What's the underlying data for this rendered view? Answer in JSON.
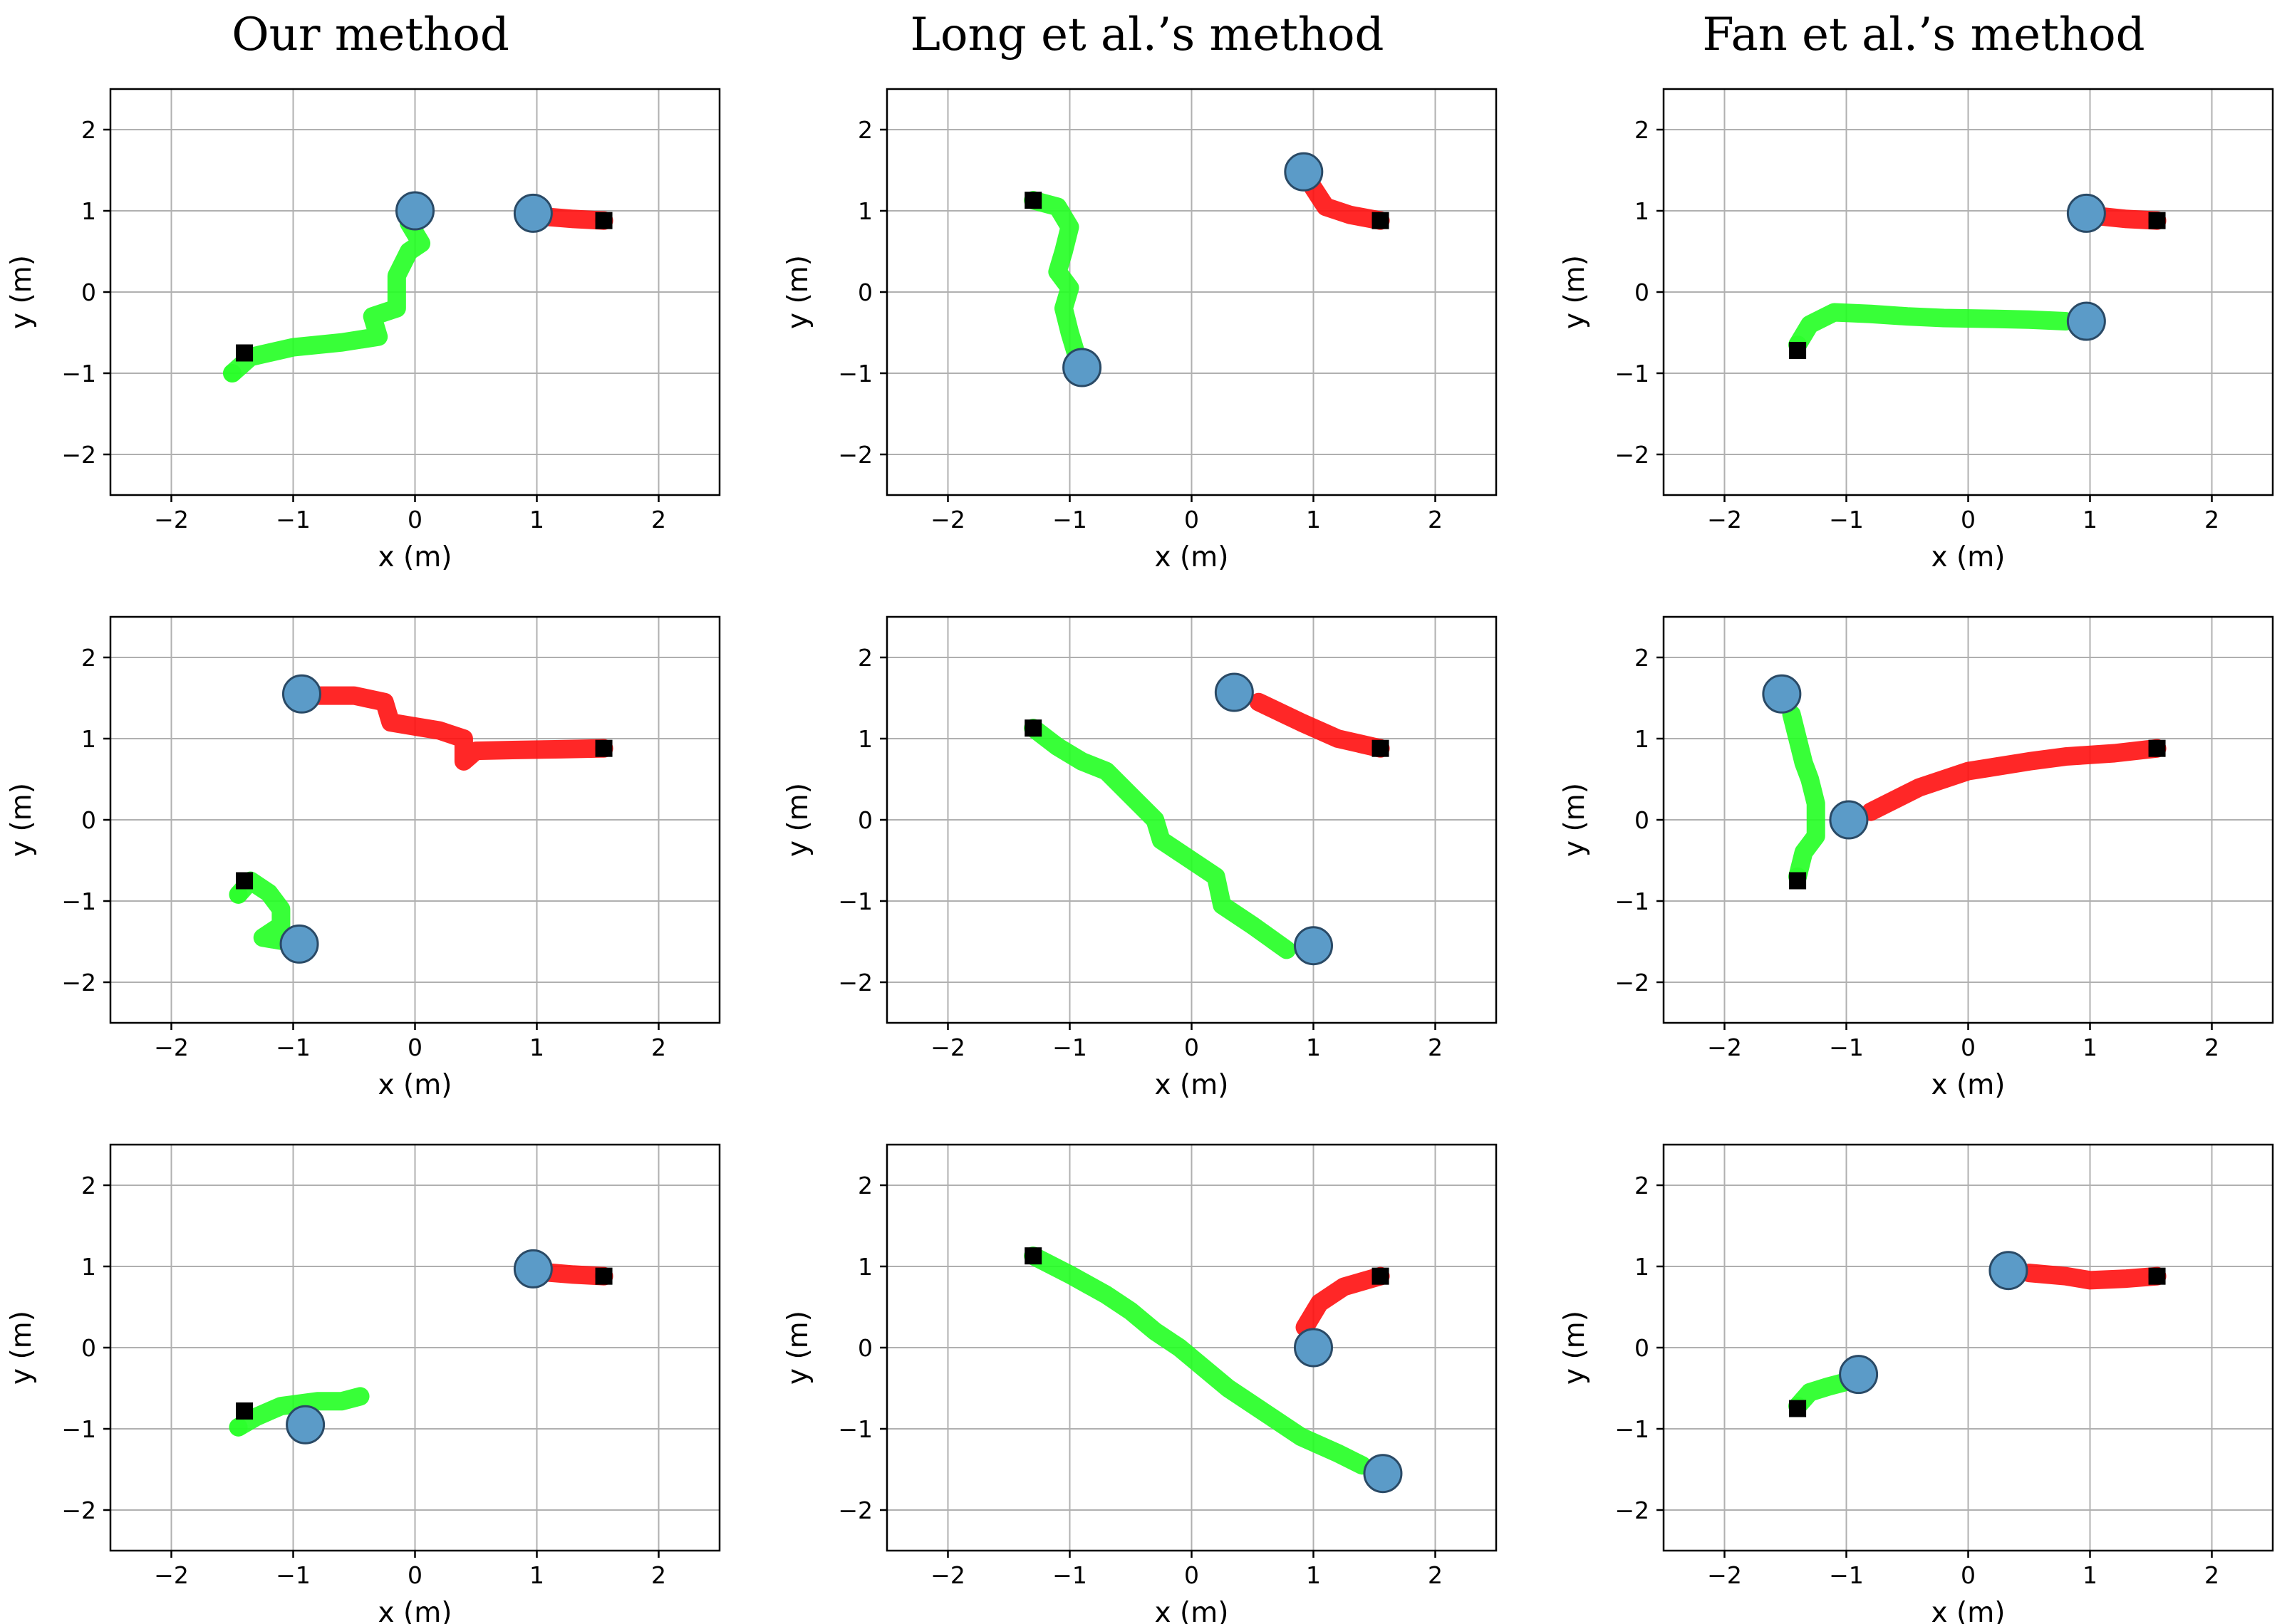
{
  "figure": {
    "column_titles": [
      "Our method",
      "Long et al.’s method",
      "Fan et al.’s method"
    ]
  },
  "colors": {
    "robot_green": "#22ff22",
    "robot_red": "#ff1010",
    "agent_disc": "#5b9bc8",
    "goal_marker": "#000000",
    "grid": "#b0b0b0"
  },
  "chart_data": [
    {
      "type": "scatter",
      "title": "Our method",
      "row": 0,
      "col": 0,
      "xlabel": "x (m)",
      "ylabel": "y (m)",
      "xlim": [
        -2.5,
        2.5
      ],
      "ylim": [
        -2.5,
        2.5
      ],
      "xticks": [
        -2,
        -1,
        0,
        1,
        2
      ],
      "yticks": [
        -2,
        -1,
        0,
        1,
        2
      ],
      "grid": true,
      "series": [
        {
          "name": "agent-green",
          "color": "green",
          "goal": [
            -1.4,
            -0.75
          ],
          "path": [
            [
              -1.5,
              -1.0
            ],
            [
              -1.35,
              -0.8
            ],
            [
              -1.0,
              -0.68
            ],
            [
              -0.6,
              -0.62
            ],
            [
              -0.3,
              -0.55
            ],
            [
              -0.35,
              -0.3
            ],
            [
              -0.15,
              -0.2
            ],
            [
              -0.15,
              0.2
            ],
            [
              -0.05,
              0.5
            ],
            [
              0.05,
              0.6
            ],
            [
              -0.05,
              0.85
            ]
          ],
          "current": [
            0.0,
            1.0
          ]
        },
        {
          "name": "agent-red",
          "color": "red",
          "goal": [
            1.55,
            0.88
          ],
          "path": [
            [
              1.55,
              0.88
            ],
            [
              1.3,
              0.9
            ],
            [
              1.05,
              0.93
            ]
          ],
          "current": [
            0.97,
            0.97
          ]
        }
      ]
    },
    {
      "type": "scatter",
      "title": "Long et al.’s method",
      "row": 0,
      "col": 1,
      "xlabel": "x (m)",
      "ylabel": "y (m)",
      "xlim": [
        -2.5,
        2.5
      ],
      "ylim": [
        -2.5,
        2.5
      ],
      "xticks": [
        -2,
        -1,
        0,
        1,
        2
      ],
      "yticks": [
        -2,
        -1,
        0,
        1,
        2
      ],
      "grid": true,
      "series": [
        {
          "name": "agent-green",
          "color": "green",
          "goal": [
            -1.3,
            1.13
          ],
          "path": [
            [
              -1.3,
              1.13
            ],
            [
              -1.1,
              1.05
            ],
            [
              -1.0,
              0.8
            ],
            [
              -1.05,
              0.5
            ],
            [
              -1.1,
              0.25
            ],
            [
              -1.0,
              0.05
            ],
            [
              -1.05,
              -0.2
            ],
            [
              -1.0,
              -0.5
            ],
            [
              -0.95,
              -0.75
            ]
          ],
          "current": [
            -0.9,
            -0.93
          ]
        },
        {
          "name": "agent-red",
          "color": "red",
          "goal": [
            1.55,
            0.88
          ],
          "path": [
            [
              1.55,
              0.88
            ],
            [
              1.3,
              0.95
            ],
            [
              1.1,
              1.05
            ],
            [
              1.0,
              1.28
            ]
          ],
          "current": [
            0.92,
            1.48
          ]
        }
      ]
    },
    {
      "type": "scatter",
      "title": "Fan et al.’s method",
      "row": 0,
      "col": 2,
      "xlabel": "x (m)",
      "ylabel": "y (m)",
      "xlim": [
        -2.5,
        2.5
      ],
      "ylim": [
        -2.5,
        2.5
      ],
      "xticks": [
        -2,
        -1,
        0,
        1,
        2
      ],
      "yticks": [
        -2,
        -1,
        0,
        1,
        2
      ],
      "grid": true,
      "series": [
        {
          "name": "agent-green",
          "color": "green",
          "goal": [
            -1.4,
            -0.72
          ],
          "path": [
            [
              -1.4,
              -0.65
            ],
            [
              -1.3,
              -0.4
            ],
            [
              -1.1,
              -0.25
            ],
            [
              -0.8,
              -0.27
            ],
            [
              -0.5,
              -0.3
            ],
            [
              -0.2,
              -0.32
            ],
            [
              0.2,
              -0.33
            ],
            [
              0.5,
              -0.34
            ],
            [
              0.8,
              -0.36
            ]
          ],
          "current": [
            0.97,
            -0.36
          ]
        },
        {
          "name": "agent-red",
          "color": "red",
          "goal": [
            1.55,
            0.88
          ],
          "path": [
            [
              1.55,
              0.88
            ],
            [
              1.3,
              0.9
            ],
            [
              1.1,
              0.93
            ]
          ],
          "current": [
            0.97,
            0.97
          ]
        }
      ]
    },
    {
      "type": "scatter",
      "title": "Our method",
      "row": 1,
      "col": 0,
      "xlabel": "x (m)",
      "ylabel": "y (m)",
      "xlim": [
        -2.5,
        2.5
      ],
      "ylim": [
        -2.5,
        2.5
      ],
      "xticks": [
        -2,
        -1,
        0,
        1,
        2
      ],
      "yticks": [
        -2,
        -1,
        0,
        1,
        2
      ],
      "grid": true,
      "series": [
        {
          "name": "agent-green",
          "color": "green",
          "goal": [
            -1.4,
            -0.75
          ],
          "path": [
            [
              -1.45,
              -0.92
            ],
            [
              -1.35,
              -0.75
            ],
            [
              -1.2,
              -0.9
            ],
            [
              -1.1,
              -1.1
            ],
            [
              -1.1,
              -1.3
            ],
            [
              -1.25,
              -1.45
            ],
            [
              -1.05,
              -1.5
            ]
          ],
          "current": [
            -0.95,
            -1.53
          ]
        },
        {
          "name": "agent-red",
          "color": "red",
          "goal": [
            1.55,
            0.88
          ],
          "path": [
            [
              1.55,
              0.88
            ],
            [
              1.2,
              0.87
            ],
            [
              0.8,
              0.86
            ],
            [
              0.5,
              0.85
            ],
            [
              0.4,
              0.72
            ],
            [
              0.4,
              1.0
            ],
            [
              0.2,
              1.1
            ],
            [
              0.0,
              1.15
            ],
            [
              -0.2,
              1.2
            ],
            [
              -0.25,
              1.45
            ],
            [
              -0.5,
              1.53
            ],
            [
              -0.8,
              1.53
            ]
          ],
          "current": [
            -0.93,
            1.55
          ]
        }
      ]
    },
    {
      "type": "scatter",
      "title": "Long et al.’s method",
      "row": 1,
      "col": 1,
      "xlabel": "x (m)",
      "ylabel": "y (m)",
      "xlim": [
        -2.5,
        2.5
      ],
      "ylim": [
        -2.5,
        2.5
      ],
      "xticks": [
        -2,
        -1,
        0,
        1,
        2
      ],
      "yticks": [
        -2,
        -1,
        0,
        1,
        2
      ],
      "grid": true,
      "series": [
        {
          "name": "agent-green",
          "color": "green",
          "goal": [
            -1.3,
            1.13
          ],
          "path": [
            [
              -1.3,
              1.13
            ],
            [
              -1.1,
              0.9
            ],
            [
              -0.9,
              0.72
            ],
            [
              -0.7,
              0.6
            ],
            [
              -0.5,
              0.3
            ],
            [
              -0.3,
              0.0
            ],
            [
              -0.25,
              -0.25
            ],
            [
              -0.05,
              -0.45
            ],
            [
              0.2,
              -0.7
            ],
            [
              0.25,
              -1.05
            ],
            [
              0.5,
              -1.3
            ],
            [
              0.78,
              -1.6
            ]
          ],
          "current": [
            1.0,
            -1.55
          ]
        },
        {
          "name": "agent-red",
          "color": "red",
          "goal": [
            1.55,
            0.88
          ],
          "path": [
            [
              1.55,
              0.88
            ],
            [
              1.2,
              1.0
            ],
            [
              0.9,
              1.2
            ],
            [
              0.55,
              1.45
            ]
          ],
          "current": [
            0.35,
            1.57
          ]
        }
      ]
    },
    {
      "type": "scatter",
      "title": "Fan et al.’s method",
      "row": 1,
      "col": 2,
      "xlabel": "x (m)",
      "ylabel": "y (m)",
      "xlim": [
        -2.5,
        2.5
      ],
      "ylim": [
        -2.5,
        2.5
      ],
      "xticks": [
        -2,
        -1,
        0,
        1,
        2
      ],
      "yticks": [
        -2,
        -1,
        0,
        1,
        2
      ],
      "grid": true,
      "series": [
        {
          "name": "agent-green",
          "color": "green",
          "goal": [
            -1.4,
            -0.75
          ],
          "path": [
            [
              -1.4,
              -0.7
            ],
            [
              -1.35,
              -0.4
            ],
            [
              -1.25,
              -0.2
            ],
            [
              -1.25,
              0.2
            ],
            [
              -1.3,
              0.5
            ],
            [
              -1.35,
              0.7
            ],
            [
              -1.4,
              1.0
            ],
            [
              -1.45,
              1.3
            ]
          ],
          "current": [
            -1.53,
            1.55
          ]
        },
        {
          "name": "agent-red",
          "color": "red",
          "goal": [
            1.55,
            0.88
          ],
          "path": [
            [
              1.55,
              0.88
            ],
            [
              1.2,
              0.82
            ],
            [
              0.8,
              0.78
            ],
            [
              0.5,
              0.72
            ],
            [
              0.0,
              0.6
            ],
            [
              -0.4,
              0.4
            ],
            [
              -0.8,
              0.1
            ]
          ],
          "current": [
            -0.98,
            0.0
          ]
        }
      ]
    },
    {
      "type": "scatter",
      "title": "Our method",
      "row": 2,
      "col": 0,
      "xlabel": "x (m)",
      "ylabel": "y (m)",
      "xlim": [
        -2.5,
        2.5
      ],
      "ylim": [
        -2.5,
        2.5
      ],
      "xticks": [
        -2,
        -1,
        0,
        1,
        2
      ],
      "yticks": [
        -2,
        -1,
        0,
        1,
        2
      ],
      "grid": true,
      "series": [
        {
          "name": "agent-green",
          "color": "green",
          "goal": [
            -1.4,
            -0.78
          ],
          "path": [
            [
              -1.45,
              -0.98
            ],
            [
              -1.3,
              -0.85
            ],
            [
              -1.1,
              -0.72
            ],
            [
              -0.8,
              -0.66
            ],
            [
              -0.6,
              -0.66
            ],
            [
              -0.45,
              -0.6
            ]
          ],
          "current": [
            -0.9,
            -0.95
          ]
        },
        {
          "name": "agent-red",
          "color": "red",
          "goal": [
            1.55,
            0.88
          ],
          "path": [
            [
              1.55,
              0.88
            ],
            [
              1.3,
              0.9
            ],
            [
              1.05,
              0.93
            ]
          ],
          "current": [
            0.97,
            0.97
          ]
        }
      ]
    },
    {
      "type": "scatter",
      "title": "Long et al.’s method",
      "row": 2,
      "col": 1,
      "xlabel": "x (m)",
      "ylabel": "y (m)",
      "xlim": [
        -2.5,
        2.5
      ],
      "ylim": [
        -2.5,
        2.5
      ],
      "xticks": [
        -2,
        -1,
        0,
        1,
        2
      ],
      "yticks": [
        -2,
        -1,
        0,
        1,
        2
      ],
      "grid": true,
      "series": [
        {
          "name": "agent-green",
          "color": "green",
          "goal": [
            -1.3,
            1.13
          ],
          "path": [
            [
              -1.3,
              1.13
            ],
            [
              -1.0,
              0.9
            ],
            [
              -0.7,
              0.65
            ],
            [
              -0.5,
              0.45
            ],
            [
              -0.3,
              0.2
            ],
            [
              -0.1,
              0.0
            ],
            [
              0.1,
              -0.25
            ],
            [
              0.3,
              -0.5
            ],
            [
              0.6,
              -0.8
            ],
            [
              0.9,
              -1.1
            ],
            [
              1.2,
              -1.3
            ],
            [
              1.4,
              -1.45
            ]
          ],
          "current": [
            1.57,
            -1.55
          ]
        },
        {
          "name": "agent-red",
          "color": "red",
          "goal": [
            1.55,
            0.88
          ],
          "path": [
            [
              1.55,
              0.88
            ],
            [
              1.25,
              0.75
            ],
            [
              1.05,
              0.55
            ],
            [
              0.93,
              0.25
            ]
          ],
          "current": [
            1.0,
            0.0
          ]
        }
      ]
    },
    {
      "type": "scatter",
      "title": "Fan et al.’s method",
      "row": 2,
      "col": 2,
      "xlabel": "x (m)",
      "ylabel": "y (m)",
      "xlim": [
        -2.5,
        2.5
      ],
      "ylim": [
        -2.5,
        2.5
      ],
      "xticks": [
        -2,
        -1,
        0,
        1,
        2
      ],
      "yticks": [
        -2,
        -1,
        0,
        1,
        2
      ],
      "grid": true,
      "series": [
        {
          "name": "agent-green",
          "color": "green",
          "goal": [
            -1.4,
            -0.75
          ],
          "path": [
            [
              -1.4,
              -0.72
            ],
            [
              -1.3,
              -0.55
            ],
            [
              -1.15,
              -0.48
            ],
            [
              -1.0,
              -0.42
            ]
          ],
          "current": [
            -0.9,
            -0.33
          ]
        },
        {
          "name": "agent-red",
          "color": "red",
          "goal": [
            1.55,
            0.88
          ],
          "path": [
            [
              1.55,
              0.88
            ],
            [
              1.3,
              0.85
            ],
            [
              1.0,
              0.83
            ],
            [
              0.8,
              0.88
            ],
            [
              0.5,
              0.92
            ]
          ],
          "current": [
            0.33,
            0.95
          ]
        }
      ]
    }
  ]
}
